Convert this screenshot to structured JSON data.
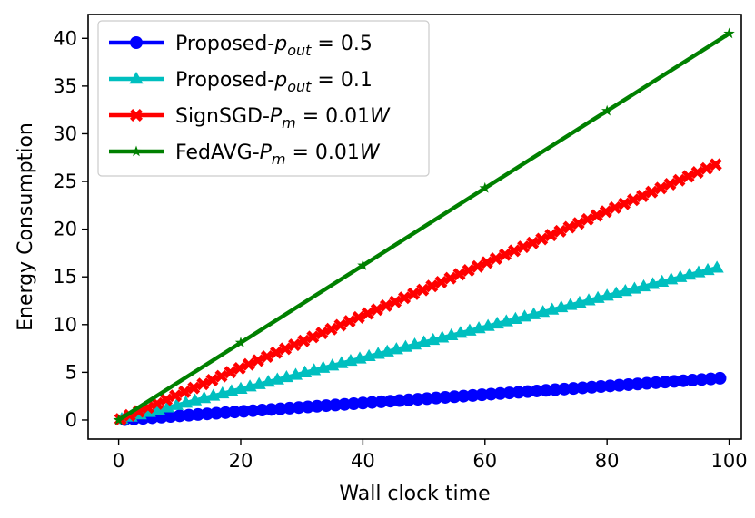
{
  "chart_data": {
    "type": "line",
    "title": "",
    "xlabel": "Wall clock time",
    "ylabel": "Energy Consumption",
    "xlim": [
      -5,
      102
    ],
    "ylim": [
      -2,
      42.5
    ],
    "xticks": [
      0,
      20,
      40,
      60,
      80,
      100
    ],
    "xtick_labels": [
      "0",
      "20",
      "40",
      "60",
      "80",
      "100"
    ],
    "yticks": [
      0,
      5,
      10,
      15,
      20,
      25,
      30,
      35,
      40
    ],
    "ytick_labels": [
      "0",
      "5",
      "10",
      "15",
      "20",
      "25",
      "30",
      "35",
      "40"
    ],
    "grid": false,
    "legend_position": "top-left",
    "series": [
      {
        "name": "Proposed-p_out=0.5",
        "legend_prefix": "Proposed-",
        "legend_math_base": "p",
        "legend_math_sub": "out",
        "legend_math_rest": " = 0.5",
        "color": "#0000ff",
        "marker": "circle",
        "x_start": 1,
        "x_end": 99,
        "x_step": 1.5,
        "y_start": 0.04,
        "y_end": 4.4
      },
      {
        "name": "Proposed-p_out=0.1",
        "legend_prefix": "Proposed-",
        "legend_math_base": "p",
        "legend_math_sub": "out",
        "legend_math_rest": " = 0.1",
        "color": "#00bfbf",
        "marker": "triangle",
        "x_start": 0.5,
        "x_end": 99,
        "x_step": 1.5,
        "y_start": 0.08,
        "y_end": 16.1
      },
      {
        "name": "SignSGD-P_m=0.01W",
        "legend_prefix": "SignSGD-",
        "legend_math_base": "P",
        "legend_math_sub": "m",
        "legend_math_rest": " = 0.01",
        "legend_math_tail": "W",
        "color": "#ff0000",
        "marker": "x",
        "x_start": 0.3,
        "x_end": 99,
        "x_step": 1.5,
        "y_start": 0.08,
        "y_end": 27.1
      },
      {
        "name": "FedAVG-P_m=0.01W",
        "legend_prefix": "FedAVG-",
        "legend_math_base": "P",
        "legend_math_sub": "m",
        "legend_math_rest": " = 0.01",
        "legend_math_tail": "W",
        "color": "#008000",
        "marker": "star",
        "x": [
          0,
          20,
          40,
          60,
          80,
          100
        ],
        "y": [
          0,
          8.1,
          16.2,
          24.3,
          32.4,
          40.5
        ]
      }
    ]
  }
}
